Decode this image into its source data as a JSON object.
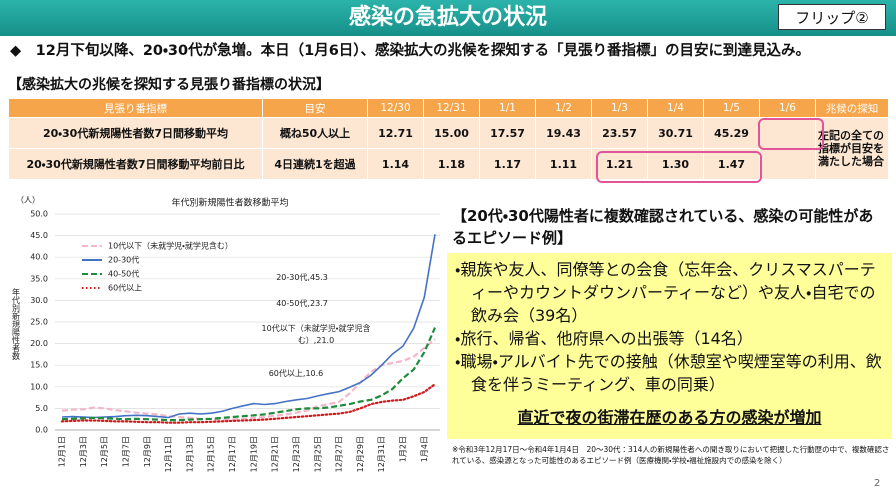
{
  "header": {
    "title": "感染の急拡大の状況",
    "flip": "フリップ②"
  },
  "summary": "◆　12月下旬以降、20・30代が急増。本日（1月6日）、感染拡大の兆候を探知する「見張り番指標」の目安に到達見込み。",
  "table": {
    "title": "【感染拡大の兆候を探知する見張り番指標の状況】",
    "columns": [
      "見張り番指標",
      "目安",
      "12/30",
      "12/31",
      "1/1",
      "1/2",
      "1/3",
      "1/4",
      "1/5",
      "1/6",
      "兆候の探知"
    ],
    "rows": [
      [
        "20・30代新規陽性者数7日間移動平均",
        "概ね50人以上",
        "12.71",
        "15.00",
        "17.57",
        "19.43",
        "23.57",
        "30.71",
        "45.29"
      ],
      [
        "20・30代新規陽性者数7日間移動平均前日比",
        "4日連続1を超過",
        "1.14",
        "1.18",
        "1.17",
        "1.11",
        "1.21",
        "1.30",
        "1.47"
      ]
    ],
    "detection_note": "左記の全ての指標が目安を満たした場合"
  },
  "chart_data": {
    "type": "line",
    "title": "年代別新規陽性者数移動平均",
    "y_unit": "（人）",
    "y_label": "年代別新規陽性者数",
    "grid": true,
    "categories": [
      "12月1日",
      null,
      "12月3日",
      null,
      "12月5日",
      null,
      "12月7日",
      null,
      "12月9日",
      null,
      "12月11日",
      null,
      "12月13日",
      null,
      "12月15日",
      null,
      "12月17日",
      null,
      "12月19日",
      null,
      "12月21日",
      null,
      "12月23日",
      null,
      "12月25日",
      null,
      "12月27日",
      null,
      "12月29日",
      null,
      "12月31日",
      null,
      "1月2日",
      null,
      "1月4日",
      null
    ],
    "ylim": [
      0,
      50
    ],
    "yticks": [
      {
        "value": 0,
        "label": "0.0"
      },
      {
        "value": 5,
        "label": "5.0"
      },
      {
        "value": 10,
        "label": "10.0"
      },
      {
        "value": 15,
        "label": "15.0"
      },
      {
        "value": 20,
        "label": "20.0"
      },
      {
        "value": 25,
        "label": "25.0"
      },
      {
        "value": 30,
        "label": "30.0"
      },
      {
        "value": 35,
        "label": "35.0"
      },
      {
        "value": 40,
        "label": "40.0"
      },
      {
        "value": 45,
        "label": "45.0"
      },
      {
        "value": 50,
        "label": "50.0"
      }
    ],
    "series": [
      {
        "name": "10代以下（未就学児・就学児含む）",
        "color": "#f4b6c8",
        "line_style": "dashed",
        "values": [
          4.5,
          4.7,
          4.8,
          5.2,
          5.0,
          4.6,
          4.3,
          4.0,
          3.8,
          3.6,
          3.2,
          3.0,
          2.8,
          2.6,
          2.5,
          2.3,
          2.4,
          2.6,
          2.8,
          3.0,
          3.3,
          3.6,
          4.0,
          4.5,
          5.5,
          6.0,
          6.5,
          8.5,
          11.0,
          13.5,
          15.0,
          15.5,
          16.0,
          17.0,
          19.0,
          21.0
        ]
      },
      {
        "name": "20-30代",
        "color": "#4472c4",
        "line_style": "solid",
        "values": [
          3.0,
          3.1,
          3.0,
          2.9,
          3.0,
          3.1,
          3.3,
          3.4,
          3.3,
          3.1,
          2.9,
          3.7,
          3.9,
          3.7,
          3.9,
          4.3,
          5.0,
          5.6,
          6.1,
          5.9,
          6.1,
          6.6,
          7.0,
          7.3,
          7.9,
          8.4,
          8.9,
          9.9,
          11.0,
          12.71,
          15.0,
          17.57,
          19.43,
          23.57,
          30.71,
          45.29
        ]
      },
      {
        "name": "40-50代",
        "color": "#1e8c3a",
        "line_style": "dashed",
        "values": [
          2.5,
          2.6,
          2.7,
          2.8,
          2.7,
          2.6,
          2.5,
          2.6,
          2.5,
          2.4,
          2.3,
          2.3,
          2.4,
          2.5,
          2.6,
          2.8,
          3.0,
          3.2,
          3.4,
          3.6,
          4.0,
          4.4,
          4.8,
          5.0,
          5.0,
          5.2,
          5.6,
          6.0,
          6.6,
          7.0,
          8.0,
          9.5,
          12.0,
          14.0,
          18.0,
          23.7
        ]
      },
      {
        "name": "60代以上",
        "color": "#d0191a",
        "line_style": "dotted",
        "values": [
          2.0,
          2.1,
          2.2,
          2.2,
          2.1,
          2.0,
          2.0,
          1.9,
          1.8,
          1.8,
          1.7,
          1.7,
          1.8,
          1.8,
          1.9,
          2.0,
          2.1,
          2.2,
          2.3,
          2.4,
          2.6,
          2.8,
          3.0,
          3.2,
          3.4,
          3.6,
          3.8,
          4.2,
          5.0,
          6.0,
          6.5,
          6.8,
          7.0,
          7.8,
          8.8,
          10.6
        ]
      }
    ],
    "annotations": [
      "20-30代,45.3",
      "40-50代,23.7",
      "10代以下（未就学児・就学児含む）,21.0",
      "60代以上,10.6"
    ]
  },
  "episodes": {
    "title": "【20代・30代陽性者に複数確認されている、感染の可能性があるエピソード例】",
    "items": [
      "・親族や友人、同僚等との会食（忘年会、クリスマスパーティーやカウントダウンパーティーなど）や友人・自宅での飲み会（39名）",
      "・旅行、帰省、他府県への出張等（14名）",
      "・職場・アルバイト先での接触（休憩室や喫煙室等の利用、飲食を伴うミーティング、車の同乗）"
    ],
    "emphasis": "直近で夜の街滞在歴のある方の感染が増加",
    "footnote": "※令和3年12月17日～令和4年1月4日　20～30代：314人の新規陽性者への聞き取りにおいて把握した行動歴の中で、複数確認されている、感染源となった可能性のあるエピソード例（医療機関・学校・福祉施設内での感染を除く）"
  },
  "page_number": "2"
}
